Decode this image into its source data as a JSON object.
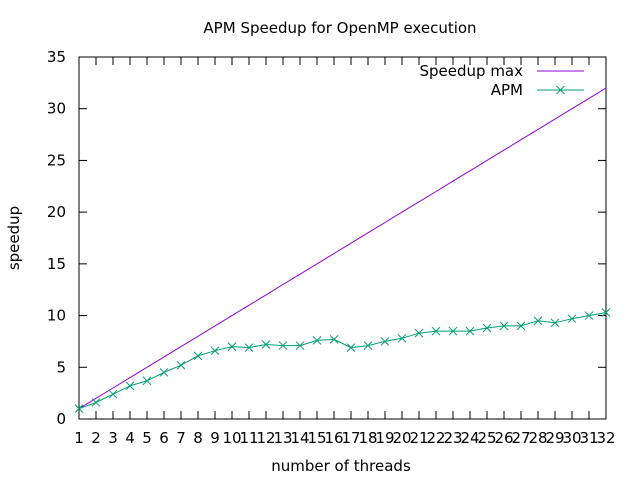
{
  "chart_data": {
    "type": "line",
    "title": "APM Speedup for OpenMP execution",
    "xlabel": "number of threads",
    "ylabel": "speedup",
    "xlim": [
      1,
      32
    ],
    "ylim": [
      0,
      35
    ],
    "x": [
      1,
      2,
      3,
      4,
      5,
      6,
      7,
      8,
      9,
      10,
      11,
      12,
      13,
      14,
      15,
      16,
      17,
      18,
      19,
      20,
      21,
      22,
      23,
      24,
      25,
      26,
      27,
      28,
      29,
      30,
      31,
      32
    ],
    "x_ticks": [
      "1",
      "2",
      "3",
      "4",
      "5",
      "6",
      "7",
      "8",
      "9",
      "10",
      "11",
      "12",
      "13",
      "14",
      "15",
      "16",
      "17",
      "18",
      "19",
      "20",
      "21",
      "22",
      "23",
      "24",
      "25",
      "26",
      "27",
      "28",
      "29",
      "30",
      "31",
      "32"
    ],
    "y_ticks": [
      "0",
      "5",
      "10",
      "15",
      "20",
      "25",
      "30",
      "35"
    ],
    "grid": false,
    "legend_position": "top-right",
    "series": [
      {
        "name": "Speedup max",
        "color": "#9400d3",
        "marker": "none",
        "values": [
          1,
          2,
          3,
          4,
          5,
          6,
          7,
          8,
          9,
          10,
          11,
          12,
          13,
          14,
          15,
          16,
          17,
          18,
          19,
          20,
          21,
          22,
          23,
          24,
          25,
          26,
          27,
          28,
          29,
          30,
          31,
          32
        ]
      },
      {
        "name": "APM",
        "color": "#009e73",
        "marker": "x",
        "values": [
          1.0,
          1.6,
          2.4,
          3.2,
          3.7,
          4.5,
          5.2,
          6.1,
          6.6,
          7.0,
          6.9,
          7.2,
          7.1,
          7.1,
          7.6,
          7.7,
          6.9,
          7.1,
          7.5,
          7.8,
          8.3,
          8.5,
          8.5,
          8.5,
          8.8,
          9.0,
          9.0,
          9.5,
          9.3,
          9.7,
          10.0,
          10.3
        ]
      }
    ]
  }
}
